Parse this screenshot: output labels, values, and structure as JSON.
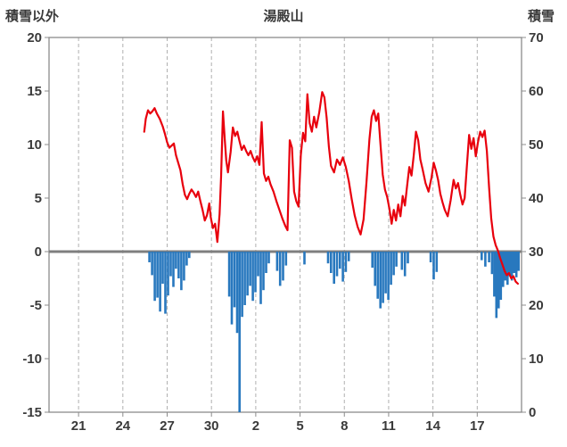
{
  "header": {
    "left_axis_title": "積雪以外",
    "title": "湯殿山",
    "right_axis_title": "積雪"
  },
  "chart_data": {
    "type": "combo",
    "title": "湯殿山",
    "legend": "none",
    "grid": {
      "vertical_dashed": true,
      "horizontal": false
    },
    "left_axis": {
      "title": "積雪以外",
      "domain": [
        -15,
        20
      ],
      "ticks": [
        20,
        15,
        10,
        5,
        0,
        -5,
        -10,
        -15
      ]
    },
    "right_axis": {
      "title": "積雪",
      "domain": [
        0,
        70
      ],
      "ticks": [
        70,
        60,
        50,
        40,
        30,
        20,
        10,
        0
      ]
    },
    "x_axis": {
      "domain": [
        19,
        51
      ],
      "tick_positions": [
        21,
        24,
        27,
        30,
        33,
        36,
        39,
        42,
        45,
        48
      ],
      "tick_labels": [
        "21",
        "24",
        "27",
        "30",
        "2",
        "5",
        "8",
        "11",
        "14",
        "17"
      ]
    },
    "zero_line": {
      "value": 0,
      "color": "#7f7f7f"
    },
    "series": [
      {
        "name": "line-series",
        "type": "line",
        "axis": "left",
        "color": "#e8000d",
        "points": [
          [
            25.45,
            11.2
          ],
          [
            25.55,
            12.4
          ],
          [
            25.7,
            13.2
          ],
          [
            25.85,
            12.9
          ],
          [
            26.0,
            13.1
          ],
          [
            26.15,
            13.4
          ],
          [
            26.3,
            12.9
          ],
          [
            26.5,
            12.4
          ],
          [
            26.7,
            11.7
          ],
          [
            26.85,
            11.0
          ],
          [
            27.0,
            10.2
          ],
          [
            27.15,
            9.7
          ],
          [
            27.3,
            9.9
          ],
          [
            27.45,
            10.1
          ],
          [
            27.6,
            9.0
          ],
          [
            27.75,
            8.3
          ],
          [
            27.9,
            7.6
          ],
          [
            28.05,
            6.3
          ],
          [
            28.2,
            5.3
          ],
          [
            28.35,
            4.9
          ],
          [
            28.5,
            5.4
          ],
          [
            28.65,
            5.8
          ],
          [
            28.8,
            5.5
          ],
          [
            28.95,
            5.1
          ],
          [
            29.1,
            5.6
          ],
          [
            29.25,
            4.7
          ],
          [
            29.4,
            3.9
          ],
          [
            29.55,
            2.9
          ],
          [
            29.7,
            3.4
          ],
          [
            29.85,
            4.5
          ],
          [
            29.95,
            3.2
          ],
          [
            30.1,
            2.2
          ],
          [
            30.25,
            2.6
          ],
          [
            30.4,
            0.9
          ],
          [
            30.55,
            3.5
          ],
          [
            30.65,
            7.0
          ],
          [
            30.78,
            13.1
          ],
          [
            30.9,
            10.5
          ],
          [
            31.0,
            8.5
          ],
          [
            31.12,
            7.4
          ],
          [
            31.3,
            9.3
          ],
          [
            31.45,
            11.6
          ],
          [
            31.6,
            10.8
          ],
          [
            31.75,
            11.2
          ],
          [
            31.9,
            10.3
          ],
          [
            32.05,
            9.5
          ],
          [
            32.2,
            9.9
          ],
          [
            32.35,
            9.4
          ],
          [
            32.5,
            9.0
          ],
          [
            32.65,
            9.4
          ],
          [
            32.8,
            8.8
          ],
          [
            32.95,
            8.4
          ],
          [
            33.1,
            8.9
          ],
          [
            33.25,
            8.1
          ],
          [
            33.4,
            12.1
          ],
          [
            33.55,
            7.3
          ],
          [
            33.7,
            6.6
          ],
          [
            33.85,
            7.0
          ],
          [
            34.0,
            6.3
          ],
          [
            34.2,
            5.6
          ],
          [
            34.4,
            4.7
          ],
          [
            34.6,
            3.9
          ],
          [
            34.8,
            3.1
          ],
          [
            35.0,
            2.4
          ],
          [
            35.15,
            2.0
          ],
          [
            35.3,
            10.4
          ],
          [
            35.45,
            9.7
          ],
          [
            35.6,
            5.6
          ],
          [
            35.75,
            4.7
          ],
          [
            35.9,
            4.2
          ],
          [
            36.05,
            9.0
          ],
          [
            36.2,
            11.1
          ],
          [
            36.35,
            10.3
          ],
          [
            36.5,
            14.7
          ],
          [
            36.65,
            12.0
          ],
          [
            36.8,
            11.2
          ],
          [
            36.95,
            12.6
          ],
          [
            37.1,
            11.6
          ],
          [
            37.3,
            13.0
          ],
          [
            37.5,
            14.9
          ],
          [
            37.65,
            14.4
          ],
          [
            37.8,
            12.5
          ],
          [
            37.95,
            9.8
          ],
          [
            38.1,
            8.0
          ],
          [
            38.3,
            7.4
          ],
          [
            38.5,
            8.6
          ],
          [
            38.7,
            8.1
          ],
          [
            38.9,
            8.8
          ],
          [
            39.1,
            7.9
          ],
          [
            39.3,
            6.6
          ],
          [
            39.5,
            4.9
          ],
          [
            39.7,
            3.4
          ],
          [
            39.9,
            2.3
          ],
          [
            40.1,
            1.6
          ],
          [
            40.3,
            3.0
          ],
          [
            40.5,
            6.5
          ],
          [
            40.7,
            10.5
          ],
          [
            40.85,
            12.6
          ],
          [
            41.0,
            13.2
          ],
          [
            41.15,
            12.2
          ],
          [
            41.3,
            12.9
          ],
          [
            41.45,
            10.0
          ],
          [
            41.6,
            7.2
          ],
          [
            41.75,
            5.8
          ],
          [
            41.9,
            5.1
          ],
          [
            42.05,
            4.0
          ],
          [
            42.2,
            2.6
          ],
          [
            42.35,
            3.9
          ],
          [
            42.5,
            2.9
          ],
          [
            42.65,
            4.4
          ],
          [
            42.8,
            3.3
          ],
          [
            42.95,
            5.2
          ],
          [
            43.1,
            4.3
          ],
          [
            43.25,
            6.1
          ],
          [
            43.4,
            7.9
          ],
          [
            43.55,
            7.1
          ],
          [
            43.7,
            9.0
          ],
          [
            43.85,
            11.2
          ],
          [
            44.0,
            10.4
          ],
          [
            44.15,
            8.6
          ],
          [
            44.3,
            7.7
          ],
          [
            44.5,
            6.4
          ],
          [
            44.7,
            5.6
          ],
          [
            44.9,
            6.9
          ],
          [
            45.05,
            8.3
          ],
          [
            45.2,
            7.6
          ],
          [
            45.35,
            6.7
          ],
          [
            45.5,
            5.4
          ],
          [
            45.65,
            4.6
          ],
          [
            45.8,
            3.9
          ],
          [
            46.0,
            3.3
          ],
          [
            46.2,
            4.8
          ],
          [
            46.4,
            6.7
          ],
          [
            46.55,
            5.9
          ],
          [
            46.7,
            6.4
          ],
          [
            46.85,
            5.3
          ],
          [
            47.0,
            4.4
          ],
          [
            47.15,
            5.0
          ],
          [
            47.3,
            8.0
          ],
          [
            47.45,
            10.9
          ],
          [
            47.6,
            9.6
          ],
          [
            47.75,
            10.6
          ],
          [
            47.9,
            8.9
          ],
          [
            48.05,
            10.2
          ],
          [
            48.2,
            11.2
          ],
          [
            48.35,
            10.7
          ],
          [
            48.5,
            11.3
          ],
          [
            48.65,
            9.4
          ],
          [
            48.8,
            6.0
          ],
          [
            48.95,
            3.1
          ],
          [
            49.1,
            1.4
          ],
          [
            49.25,
            0.6
          ],
          [
            49.4,
            0.1
          ],
          [
            49.55,
            -0.6
          ],
          [
            49.7,
            -1.2
          ],
          [
            49.85,
            -1.8
          ],
          [
            50.0,
            -2.2
          ],
          [
            50.15,
            -2.0
          ],
          [
            50.3,
            -2.5
          ],
          [
            50.45,
            -2.3
          ],
          [
            50.6,
            -2.8
          ],
          [
            50.75,
            -3.0
          ]
        ]
      },
      {
        "name": "bar-series",
        "type": "bar",
        "axis": "left",
        "color": "#2878be",
        "points": [
          [
            25.8,
            -1.0
          ],
          [
            25.98,
            -2.2
          ],
          [
            26.16,
            -4.6
          ],
          [
            26.34,
            -4.3
          ],
          [
            26.52,
            -5.6
          ],
          [
            26.7,
            -3.0
          ],
          [
            26.88,
            -5.8
          ],
          [
            27.06,
            -4.1
          ],
          [
            27.24,
            -2.3
          ],
          [
            27.42,
            -3.3
          ],
          [
            27.6,
            -1.6
          ],
          [
            27.78,
            -2.5
          ],
          [
            27.96,
            -3.6
          ],
          [
            28.14,
            -2.7
          ],
          [
            28.32,
            -1.3
          ],
          [
            28.5,
            -0.6
          ],
          [
            31.2,
            -4.2
          ],
          [
            31.38,
            -6.8
          ],
          [
            31.56,
            -5.2
          ],
          [
            31.74,
            -7.6
          ],
          [
            31.9,
            -15.0
          ],
          [
            32.08,
            -6.1
          ],
          [
            32.26,
            -5.0
          ],
          [
            32.44,
            -4.1
          ],
          [
            32.62,
            -3.2
          ],
          [
            32.8,
            -4.6
          ],
          [
            32.98,
            -3.8
          ],
          [
            33.16,
            -2.3
          ],
          [
            33.34,
            -4.9
          ],
          [
            33.52,
            -3.6
          ],
          [
            33.7,
            -2.0
          ],
          [
            33.88,
            -1.1
          ],
          [
            34.45,
            -1.8
          ],
          [
            34.65,
            -3.2
          ],
          [
            34.85,
            -2.7
          ],
          [
            35.05,
            -1.3
          ],
          [
            36.3,
            -1.2
          ],
          [
            37.9,
            -1.1
          ],
          [
            38.1,
            -2.0
          ],
          [
            38.3,
            -3.0
          ],
          [
            38.5,
            -2.3
          ],
          [
            38.7,
            -1.6
          ],
          [
            38.9,
            -2.8
          ],
          [
            39.1,
            -1.9
          ],
          [
            39.3,
            -0.9
          ],
          [
            40.9,
            -1.5
          ],
          [
            41.08,
            -3.2
          ],
          [
            41.26,
            -4.4
          ],
          [
            41.44,
            -5.3
          ],
          [
            41.62,
            -4.8
          ],
          [
            41.8,
            -3.9
          ],
          [
            41.98,
            -4.5
          ],
          [
            42.16,
            -3.1
          ],
          [
            42.34,
            -2.2
          ],
          [
            42.52,
            -1.4
          ],
          [
            42.9,
            -1.7
          ],
          [
            43.1,
            -2.3
          ],
          [
            43.3,
            -1.1
          ],
          [
            44.85,
            -1.0
          ],
          [
            45.05,
            -2.6
          ],
          [
            45.25,
            -1.9
          ],
          [
            48.3,
            -0.8
          ],
          [
            48.55,
            -1.4
          ],
          [
            48.8,
            -1.0
          ],
          [
            49.0,
            -2.1
          ],
          [
            49.15,
            -4.2
          ],
          [
            49.3,
            -6.2
          ],
          [
            49.45,
            -5.3
          ],
          [
            49.6,
            -4.5
          ],
          [
            49.75,
            -3.3
          ],
          [
            49.9,
            -2.7
          ],
          [
            50.05,
            -3.1
          ],
          [
            50.2,
            -2.3
          ],
          [
            50.35,
            -2.7
          ],
          [
            50.5,
            -2.0
          ],
          [
            50.65,
            -2.4
          ],
          [
            50.8,
            -1.8
          ]
        ]
      }
    ]
  }
}
